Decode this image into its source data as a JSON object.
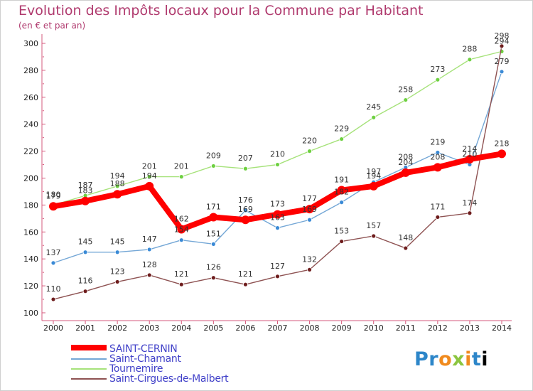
{
  "header": {
    "title": "Evolution des Impôts locaux pour la Commune par Habitant",
    "subtitle": "(en € et par an)"
  },
  "logo": {
    "letters": [
      "P",
      "r",
      "o",
      "x",
      "i",
      "t",
      "i"
    ]
  },
  "chart_data": {
    "type": "line",
    "title": "Evolution des Impôts locaux pour la Commune par Habitant",
    "subtitle": "(en € et par an)",
    "xlabel": "",
    "ylabel": "",
    "x": [
      "2000",
      "2001",
      "2002",
      "2003",
      "2004",
      "2005",
      "2006",
      "2007",
      "2008",
      "2009",
      "2010",
      "2011",
      "2012",
      "2013",
      "2014"
    ],
    "ylim": [
      100,
      300
    ],
    "yticks": [
      100,
      120,
      140,
      160,
      180,
      200,
      220,
      240,
      260,
      280,
      300
    ],
    "grid": false,
    "legend_position": "bottom-left",
    "series": [
      {
        "name": "SAINT-CERNIN",
        "color": "#ff0000",
        "marker": "#ff0000",
        "emphasis": true,
        "values": [
          179,
          183,
          188,
          194,
          162,
          171,
          169,
          173,
          177,
          191,
          194,
          204,
          208,
          214,
          218
        ],
        "labels": [
          "179",
          "183",
          "188",
          "194",
          "162",
          "171",
          "169",
          "173",
          "177",
          "191",
          "194",
          "204",
          "208",
          "214",
          "218"
        ]
      },
      {
        "name": "Saint-Chamant",
        "color": "#74a7d6",
        "marker": "#3a8ad6",
        "emphasis": false,
        "values": [
          137,
          145,
          145,
          147,
          154,
          151,
          176,
          163,
          169,
          182,
          197,
          208,
          219,
          210,
          279
        ],
        "labels": [
          "137",
          "145",
          "145",
          "147",
          "154",
          "151",
          "176",
          "163",
          "169",
          "182",
          "197",
          "208",
          "219",
          "210",
          "279"
        ]
      },
      {
        "name": "Tournemire",
        "color": "#a6e27a",
        "marker": "#6ed041",
        "emphasis": false,
        "values": [
          180,
          187,
          194,
          201,
          201,
          209,
          207,
          210,
          220,
          229,
          245,
          258,
          273,
          288,
          294
        ],
        "labels": [
          "180",
          "187",
          "194",
          "201",
          "201",
          "209",
          "207",
          "210",
          "220",
          "229",
          "245",
          "258",
          "273",
          "288",
          "294"
        ]
      },
      {
        "name": "Saint-Cirgues-de-Malbert",
        "color": "#8e5252",
        "marker": "#6e1d1d",
        "emphasis": false,
        "values": [
          110,
          116,
          123,
          128,
          121,
          126,
          121,
          127,
          132,
          153,
          157,
          148,
          171,
          174,
          298
        ],
        "labels": [
          "110",
          "116",
          "123",
          "128",
          "121",
          "126",
          "121",
          "127",
          "132",
          "153",
          "157",
          "148",
          "171",
          "174",
          "298"
        ]
      }
    ]
  }
}
